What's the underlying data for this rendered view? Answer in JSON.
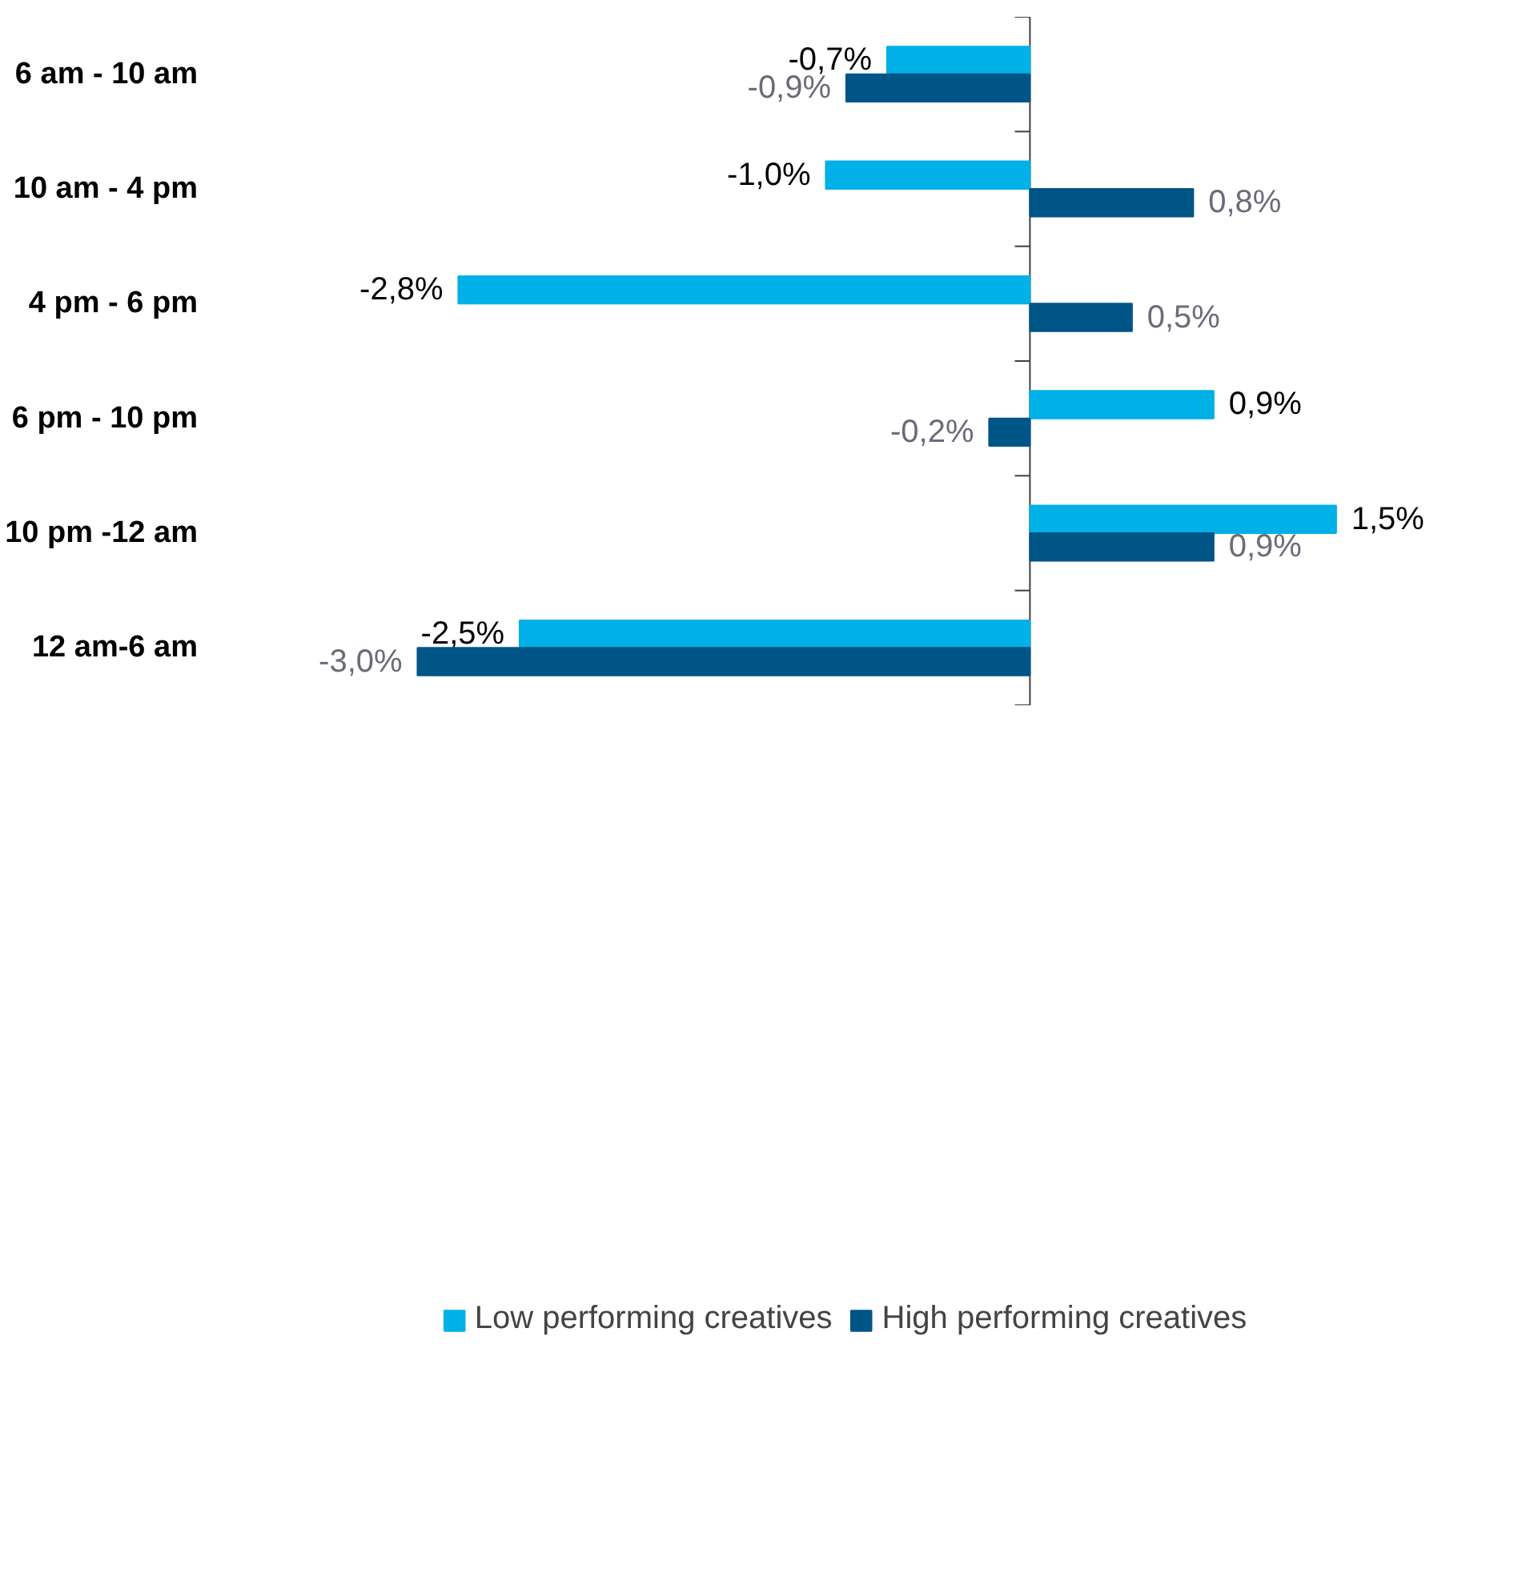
{
  "chart_data": {
    "type": "bar",
    "orientation": "horizontal",
    "categories": [
      "6 am - 10 am",
      "10 am - 4 pm",
      "4 pm - 6 pm",
      "6 pm - 10 pm",
      "10 pm -12 am",
      "12 am-6 am"
    ],
    "series": [
      {
        "name": "Low performing creatives",
        "color": "#00b0e6",
        "values": [
          -0.7,
          -1.0,
          -2.8,
          0.9,
          1.5,
          -2.5
        ],
        "value_labels": [
          "-0,7%",
          "-1,0%",
          "-2,8%",
          "0,9%",
          "1,5%",
          "-2,5%"
        ]
      },
      {
        "name": "High performing creatives",
        "color": "#005587",
        "values": [
          -0.9,
          0.8,
          0.5,
          -0.2,
          0.9,
          -3.0
        ],
        "value_labels": [
          "-0,9%",
          "0,8%",
          "0,5%",
          "-0,2%",
          "0,9%",
          "-3,0%"
        ]
      }
    ],
    "legend": "bottom",
    "tick_labels": "y"
  }
}
